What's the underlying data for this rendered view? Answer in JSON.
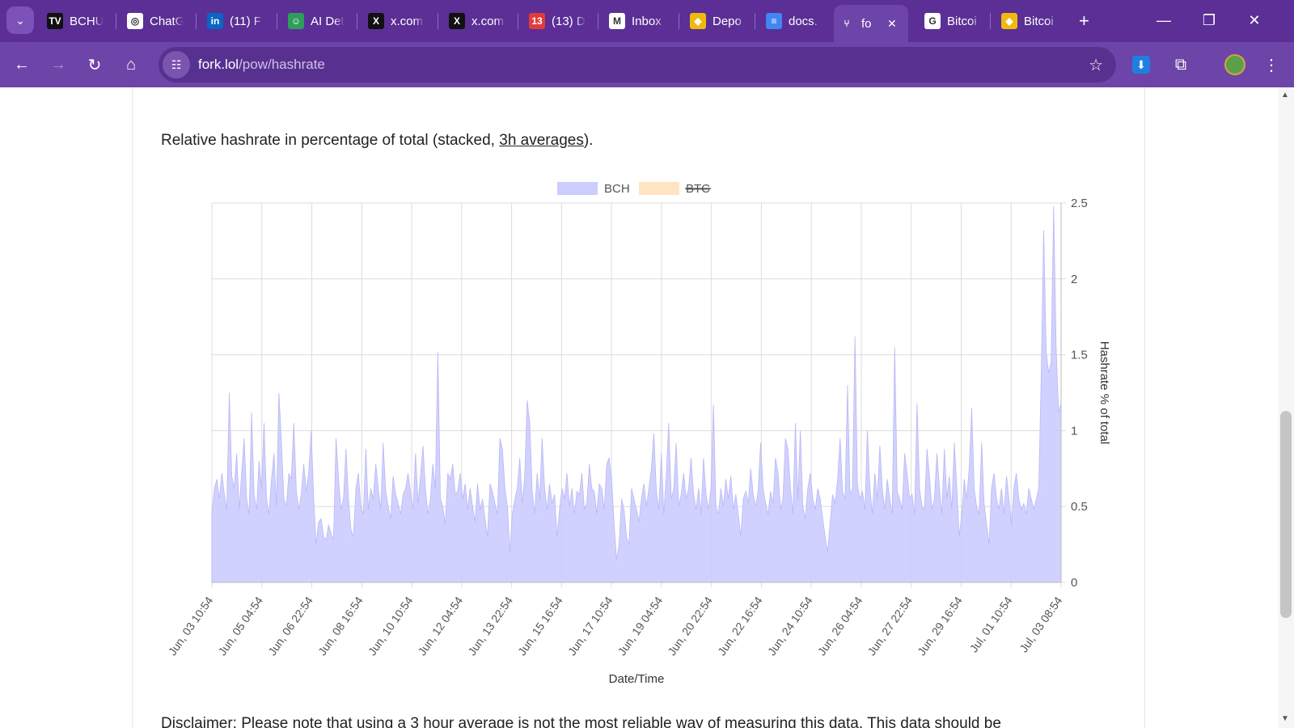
{
  "browser": {
    "tabs": [
      {
        "label": "BCHU",
        "icon": "tradingview-icon",
        "color": "#111111",
        "glyph": "TV"
      },
      {
        "label": "ChatG",
        "icon": "openai-icon",
        "color": "#ffffff",
        "glyph": "◎"
      },
      {
        "label": "(11) F",
        "icon": "linkedin-icon",
        "color": "#0a66c2",
        "glyph": "in"
      },
      {
        "label": "AI Det",
        "icon": "robot-icon",
        "color": "#2e9e5b",
        "glyph": "☺"
      },
      {
        "label": "x.com",
        "icon": "x-icon",
        "color": "#111111",
        "glyph": "X"
      },
      {
        "label": "x.com",
        "icon": "x-icon",
        "color": "#111111",
        "glyph": "X"
      },
      {
        "label": "(13) D",
        "icon": "discord-badge-icon",
        "color": "#e23b3b",
        "glyph": "13"
      },
      {
        "label": "Inbox",
        "icon": "gmail-icon",
        "color": "#ffffff",
        "glyph": "M"
      },
      {
        "label": "Depo",
        "icon": "binance-icon",
        "color": "#f0b90b",
        "glyph": "◆"
      },
      {
        "label": "docs.",
        "icon": "google-docs-icon",
        "color": "#4285f4",
        "glyph": "≡"
      },
      {
        "label": "fo",
        "icon": "fork-icon",
        "color": "#6d44a8",
        "glyph": "⑂",
        "active": true
      },
      {
        "label": "Bitcoi",
        "icon": "google-icon",
        "color": "#ffffff",
        "glyph": "G"
      },
      {
        "label": "Bitcoi",
        "icon": "binance-icon",
        "color": "#f0b90b",
        "glyph": "◆"
      }
    ],
    "new_tab": "+",
    "url_host": "fork.lol",
    "url_path": "/pow/hashrate"
  },
  "page": {
    "heading_prefix": "Relative hashrate in percentage of total (stacked, ",
    "heading_link": "3h averages",
    "heading_suffix": ").",
    "disclaimer": "Disclaimer: Please note that using a 3 hour average is not the most reliable way of measuring this data. This data should be"
  },
  "chart_data": {
    "type": "area",
    "stacked": true,
    "xlabel": "Date/Time",
    "ylabel": "Hashrate % of total",
    "y_axis_position": "right",
    "ylim": [
      0,
      2.5
    ],
    "yticks": [
      "0",
      "0.5",
      "1",
      "1.5",
      "2",
      "2.5"
    ],
    "xticks": [
      "Jun, 03 10:54",
      "Jun, 05 04:54",
      "Jun, 06 22:54",
      "Jun, 08 16:54",
      "Jun, 10 10:54",
      "Jun, 12 04:54",
      "Jun, 13 22:54",
      "Jun, 15 16:54",
      "Jun, 17 10:54",
      "Jun, 19 04:54",
      "Jun, 20 22:54",
      "Jun, 22 16:54",
      "Jun, 24 10:54",
      "Jun, 26 04:54",
      "Jun, 27 22:54",
      "Jun, 29 16:54",
      "Jul, 01 10:54",
      "Jul, 03 08:54"
    ],
    "grid": true,
    "legend_position": "top-center",
    "colors": {
      "BCH": "#ccccff",
      "BTC": "#ffe4c4"
    },
    "series": [
      {
        "name": "BCH",
        "hidden": false,
        "values": [
          0.45,
          0.62,
          0.68,
          0.55,
          0.72,
          0.58,
          0.48,
          1.25,
          0.7,
          0.62,
          0.85,
          0.48,
          0.72,
          0.95,
          0.55,
          0.45,
          1.12,
          0.58,
          0.48,
          0.8,
          0.62,
          1.05,
          0.55,
          0.45,
          0.68,
          0.85,
          0.5,
          1.25,
          0.92,
          0.55,
          0.5,
          0.72,
          0.68,
          1.05,
          0.6,
          0.48,
          0.58,
          0.78,
          0.6,
          0.72,
          1.0,
          0.55,
          0.25,
          0.4,
          0.42,
          0.3,
          0.28,
          0.38,
          0.32,
          0.28,
          0.95,
          0.68,
          0.48,
          0.55,
          0.88,
          0.55,
          0.35,
          0.3,
          0.62,
          0.72,
          0.5,
          0.45,
          0.88,
          0.48,
          0.62,
          0.55,
          0.78,
          0.62,
          0.48,
          0.92,
          0.6,
          0.5,
          0.42,
          0.7,
          0.58,
          0.52,
          0.45,
          0.58,
          0.62,
          0.72,
          0.6,
          0.48,
          0.85,
          0.52,
          0.7,
          0.9,
          0.62,
          0.45,
          0.55,
          0.78,
          0.62,
          1.52,
          0.55,
          0.5,
          0.38,
          0.72,
          0.68,
          0.78,
          0.58,
          0.6,
          0.72,
          0.55,
          0.65,
          0.48,
          0.62,
          0.5,
          0.4,
          0.65,
          0.48,
          0.55,
          0.42,
          0.3,
          0.65,
          0.6,
          0.52,
          0.45,
          0.95,
          0.88,
          0.62,
          0.5,
          0.2,
          0.45,
          0.55,
          0.62,
          0.82,
          0.52,
          0.7,
          1.2,
          1.05,
          0.6,
          0.45,
          0.72,
          0.55,
          0.95,
          0.62,
          0.48,
          0.65,
          0.52,
          0.58,
          0.3,
          0.48,
          0.62,
          0.55,
          0.72,
          0.5,
          0.62,
          0.45,
          0.6,
          0.58,
          0.72,
          0.48,
          0.52,
          0.78,
          0.62,
          0.6,
          0.45,
          0.65,
          0.62,
          0.48,
          0.78,
          0.82,
          0.68,
          0.38,
          0.15,
          0.25,
          0.55,
          0.48,
          0.3,
          0.25,
          0.62,
          0.55,
          0.48,
          0.4,
          0.55,
          0.65,
          0.5,
          0.62,
          0.75,
          0.98,
          0.6,
          0.48,
          0.85,
          0.45,
          0.7,
          1.05,
          0.55,
          0.62,
          0.92,
          0.5,
          0.58,
          0.72,
          0.55,
          0.62,
          0.82,
          0.58,
          0.48,
          0.62,
          0.45,
          0.82,
          0.58,
          0.48,
          0.62,
          1.17,
          0.5,
          0.45,
          0.62,
          0.5,
          0.68,
          0.55,
          0.7,
          0.48,
          0.58,
          0.45,
          0.3,
          0.55,
          0.6,
          0.52,
          0.75,
          0.58,
          0.5,
          0.6,
          0.92,
          0.62,
          0.52,
          0.45,
          0.6,
          0.52,
          0.82,
          0.72,
          0.48,
          0.55,
          0.95,
          0.88,
          0.62,
          0.45,
          1.05,
          0.55,
          1.0,
          0.5,
          0.42,
          0.62,
          0.72,
          0.55,
          0.48,
          0.62,
          0.55,
          0.42,
          0.3,
          0.2,
          0.4,
          0.58,
          0.52,
          0.68,
          0.95,
          0.6,
          0.55,
          1.3,
          0.58,
          0.62,
          1.62,
          0.65,
          0.55,
          0.6,
          0.48,
          1.0,
          0.62,
          0.45,
          0.72,
          0.55,
          0.9,
          0.62,
          0.48,
          0.68,
          0.55,
          0.45,
          1.55,
          0.6,
          0.55,
          0.48,
          0.85,
          0.72,
          0.55,
          0.58,
          0.45,
          1.18,
          0.62,
          0.5,
          0.48,
          0.88,
          0.7,
          0.48,
          0.55,
          0.85,
          0.62,
          0.45,
          0.88,
          0.55,
          0.7,
          0.48,
          0.92,
          0.62,
          0.3,
          0.45,
          0.68,
          0.55,
          0.75,
          1.15,
          0.62,
          0.5,
          0.45,
          0.92,
          0.52,
          0.38,
          0.25,
          0.62,
          0.72,
          0.55,
          0.48,
          0.62,
          0.45,
          0.7,
          0.55,
          0.38,
          0.62,
          0.72,
          0.55,
          0.48,
          0.52,
          0.45,
          0.62,
          0.55,
          0.48,
          0.55,
          0.62,
          1.35,
          2.32,
          1.52,
          1.38,
          1.45,
          2.48,
          1.55,
          1.12,
          1.18
        ]
      },
      {
        "name": "BTC",
        "hidden": true,
        "values": []
      }
    ]
  }
}
